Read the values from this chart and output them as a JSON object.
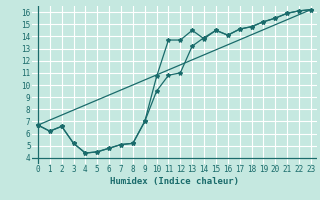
{
  "bg_color": "#c5e8e0",
  "grid_color": "#aad4cc",
  "line_color": "#1a6b6b",
  "xlabel": "Humidex (Indice chaleur)",
  "xlim": [
    -0.5,
    23.5
  ],
  "ylim": [
    3.5,
    16.5
  ],
  "xticks": [
    0,
    1,
    2,
    3,
    4,
    5,
    6,
    7,
    8,
    9,
    10,
    11,
    12,
    13,
    14,
    15,
    16,
    17,
    18,
    19,
    20,
    21,
    22,
    23
  ],
  "yticks": [
    4,
    5,
    6,
    7,
    8,
    9,
    10,
    11,
    12,
    13,
    14,
    15,
    16
  ],
  "line1_x": [
    0,
    1,
    2,
    3,
    4,
    5,
    6,
    7,
    8,
    9,
    10,
    11,
    12,
    13,
    14,
    15,
    16,
    17,
    18,
    19,
    20,
    21,
    22,
    23
  ],
  "line1_y": [
    6.7,
    6.2,
    6.6,
    5.2,
    4.4,
    4.5,
    4.8,
    5.1,
    5.2,
    7.0,
    9.5,
    10.8,
    11.0,
    13.2,
    13.9,
    14.5,
    14.1,
    14.6,
    14.8,
    15.2,
    15.5,
    15.9,
    16.1,
    16.2
  ],
  "line2_x": [
    0,
    1,
    2,
    3,
    4,
    5,
    6,
    7,
    8,
    9,
    10,
    11,
    12,
    13,
    14,
    15,
    16,
    17,
    18,
    19,
    20,
    21,
    22,
    23
  ],
  "line2_y": [
    6.7,
    6.2,
    6.6,
    5.2,
    4.4,
    4.5,
    4.8,
    5.1,
    5.2,
    7.0,
    10.7,
    13.7,
    13.7,
    14.5,
    13.8,
    14.5,
    14.1,
    14.6,
    14.8,
    15.2,
    15.5,
    15.9,
    16.1,
    16.2
  ],
  "line3_x": [
    0,
    23
  ],
  "line3_y": [
    6.7,
    16.2
  ],
  "font_size_ticks": 5.5,
  "font_size_xlabel": 6.5
}
